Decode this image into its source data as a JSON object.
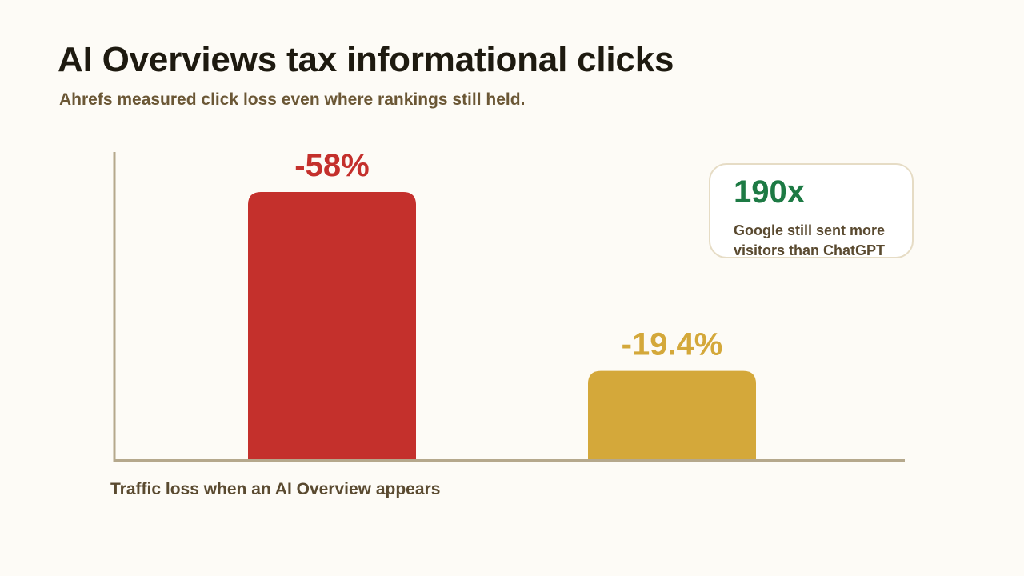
{
  "title": "AI Overviews tax informational clicks",
  "subtitle": "Ahrefs measured click loss even where rankings still held.",
  "chart_data": {
    "type": "bar",
    "xlabel": "Traffic loss when an AI Overview appears",
    "ylabel": "",
    "ylim": [
      0,
      65
    ],
    "grid": false,
    "values": [
      -58,
      -19.4
    ],
    "data_labels": [
      "-58%",
      "-19.4%"
    ],
    "colors": [
      "#c4302c",
      "#d4a83a"
    ]
  },
  "callout": {
    "value": "190x",
    "text": "Google still sent more visitors than ChatGPT",
    "value_color": "#1d7a44"
  },
  "colors": {
    "background": "#fdfbf6",
    "axis": "#b5a88c",
    "title": "#1e1a10",
    "subtitle": "#6b5735"
  }
}
